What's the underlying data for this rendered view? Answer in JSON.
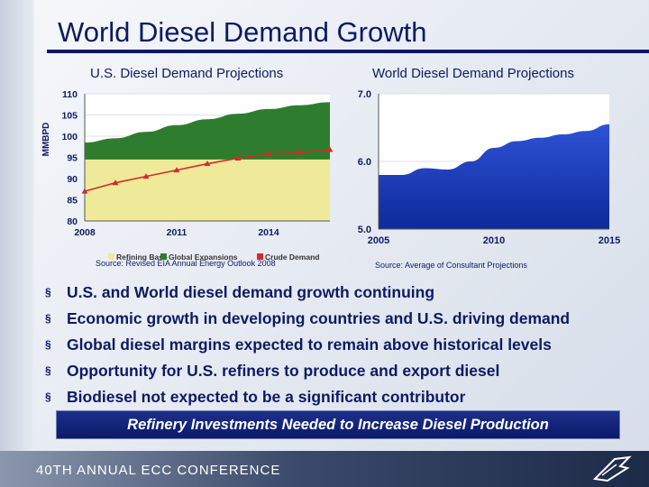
{
  "page": {
    "title": "World Diesel Demand Growth"
  },
  "chart_data": [
    {
      "type": "area",
      "title": "U.S. Diesel Demand Projections",
      "ylabel": "MMBPD",
      "ylim": [
        80,
        110
      ],
      "yticks": [
        80,
        85,
        90,
        95,
        100,
        105,
        110
      ],
      "xlim": [
        2008,
        2016
      ],
      "xticks": [
        2008,
        2011,
        2014
      ],
      "series": [
        {
          "name": "Global Expansions",
          "kind": "area",
          "x": [
            2008,
            2009,
            2010,
            2011,
            2012,
            2013,
            2014,
            2015,
            2016
          ],
          "values": [
            98.5,
            99.5,
            101.0,
            102.6,
            104.0,
            105.3,
            106.4,
            107.3,
            108.0
          ]
        },
        {
          "name": "Refining Base",
          "kind": "area",
          "x": [
            2008,
            2016
          ],
          "values": [
            94.5,
            94.5
          ]
        },
        {
          "name": "Crude Demand",
          "kind": "line",
          "x": [
            2008,
            2009,
            2010,
            2011,
            2012,
            2013,
            2014,
            2015,
            2016
          ],
          "values": [
            87.0,
            89.0,
            90.5,
            92.0,
            93.5,
            94.8,
            95.8,
            96.2,
            96.8
          ]
        }
      ],
      "legend": [
        "Refining Base",
        "Global Expansions",
        "Crude Demand"
      ],
      "source": "Source: Revised EIA Annual Energy Outlook 2008"
    },
    {
      "type": "area",
      "title": "World Diesel Demand Projections",
      "ylim": [
        5.0,
        7.0
      ],
      "yticks": [
        "5.0",
        "6.0",
        "7.0"
      ],
      "xlim": [
        2005,
        2015
      ],
      "xticks": [
        2005,
        2010,
        2015
      ],
      "series": [
        {
          "name": "World Diesel Demand",
          "x": [
            2005,
            2006,
            2007,
            2008,
            2009,
            2010,
            2011,
            2012,
            2013,
            2014,
            2015
          ],
          "values": [
            5.8,
            5.8,
            5.9,
            5.88,
            6.0,
            6.2,
            6.3,
            6.35,
            6.4,
            6.45,
            6.55
          ]
        }
      ],
      "source": "Source: Average of Consultant Projections"
    }
  ],
  "bullets": [
    "U.S. and World diesel demand growth continuing",
    "Economic growth in developing countries and U.S. driving demand",
    "Global diesel margins expected to remain above historical levels",
    "Opportunity for U.S. refiners to produce and export diesel",
    "Biodiesel not expected to be a significant contributor"
  ],
  "bullet_mark": "§",
  "banner": "Refinery Investments Needed to Increase Diesel Production",
  "footer": "40TH ANNUAL ECC CONFERENCE",
  "colors": {
    "navy": "#0d1a63",
    "green": "#2e7d2e",
    "yellow": "#eeea9a",
    "red": "#d42a2a",
    "blue": "#1e3fc4"
  }
}
